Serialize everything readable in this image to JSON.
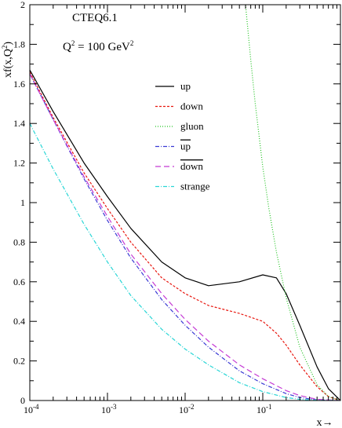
{
  "chart_data": {
    "type": "line",
    "x_scale": "log",
    "xlim": [
      0.0001,
      1
    ],
    "ylim": [
      0,
      2
    ],
    "grid": false,
    "legend_position": "top-center",
    "title_line1": "CTEQ6.1",
    "title_line2_prefix": "Q",
    "title_line2_sup": "2",
    "title_line2_rest": " = 100 GeV",
    "title_line2_sup2": "2",
    "ylabel_prefix": "xf(x,Q",
    "ylabel_sup": "2",
    "ylabel_suffix": ")",
    "xlabel": "x→",
    "y_ticks": [
      "0",
      "0.2",
      "0.4",
      "0.6",
      "0.8",
      "1",
      "1.2",
      "1.4",
      "1.6",
      "1.8",
      "2"
    ],
    "x_ticks": [
      {
        "base": "10",
        "exp": "-4"
      },
      {
        "base": "10",
        "exp": "-3"
      },
      {
        "base": "10",
        "exp": "-2"
      },
      {
        "base": "10",
        "exp": "-1"
      }
    ],
    "series": [
      {
        "name": "up",
        "overline": false,
        "color": "#000000",
        "dash": "",
        "x": [
          0.0001,
          0.0002,
          0.0005,
          0.001,
          0.002,
          0.005,
          0.01,
          0.02,
          0.05,
          0.1,
          0.15,
          0.2,
          0.3,
          0.5,
          0.7,
          1
        ],
        "y": [
          1.67,
          1.46,
          1.2,
          1.03,
          0.87,
          0.7,
          0.62,
          0.58,
          0.6,
          0.635,
          0.62,
          0.54,
          0.38,
          0.17,
          0.06,
          0.0
        ]
      },
      {
        "name": "down",
        "overline": false,
        "color": "#e8170f",
        "dash": "3,2",
        "x": [
          0.0001,
          0.0002,
          0.0005,
          0.001,
          0.002,
          0.005,
          0.01,
          0.02,
          0.05,
          0.1,
          0.15,
          0.2,
          0.3,
          0.5,
          0.7,
          1
        ],
        "y": [
          1.66,
          1.43,
          1.15,
          0.97,
          0.8,
          0.62,
          0.54,
          0.48,
          0.44,
          0.4,
          0.34,
          0.28,
          0.18,
          0.07,
          0.02,
          0.0
        ]
      },
      {
        "name": "gluon",
        "overline": false,
        "color": "#22c322",
        "dash": "1,2",
        "x": [
          0.06,
          0.07,
          0.08,
          0.1,
          0.12,
          0.15,
          0.2,
          0.3,
          0.5,
          0.7,
          1
        ],
        "y": [
          2.0,
          1.72,
          1.5,
          1.18,
          0.97,
          0.75,
          0.52,
          0.27,
          0.08,
          0.02,
          0.0
        ]
      },
      {
        "name": "up",
        "overline": true,
        "color": "#3a3ad4",
        "dash": "5,2,1,2",
        "x": [
          0.0001,
          0.0002,
          0.0005,
          0.001,
          0.002,
          0.005,
          0.01,
          0.02,
          0.05,
          0.1,
          0.2,
          0.3,
          0.5,
          1
        ],
        "y": [
          1.65,
          1.42,
          1.12,
          0.91,
          0.72,
          0.51,
          0.38,
          0.27,
          0.15,
          0.085,
          0.035,
          0.015,
          0.003,
          0.0
        ]
      },
      {
        "name": "down",
        "overline": true,
        "color": "#c43ad4",
        "dash": "7,4",
        "x": [
          0.0001,
          0.0002,
          0.0005,
          0.001,
          0.002,
          0.005,
          0.01,
          0.02,
          0.05,
          0.1,
          0.2,
          0.3,
          0.5,
          1
        ],
        "y": [
          1.65,
          1.42,
          1.13,
          0.93,
          0.74,
          0.54,
          0.41,
          0.3,
          0.18,
          0.11,
          0.05,
          0.025,
          0.006,
          0.0
        ]
      },
      {
        "name": "strange",
        "overline": false,
        "color": "#29d6d6",
        "dash": "5,2,1,2",
        "x": [
          0.0001,
          0.0002,
          0.0005,
          0.001,
          0.002,
          0.005,
          0.01,
          0.02,
          0.05,
          0.1,
          0.2,
          0.3,
          0.5,
          1
        ],
        "y": [
          1.4,
          1.17,
          0.89,
          0.7,
          0.53,
          0.36,
          0.26,
          0.18,
          0.09,
          0.045,
          0.015,
          0.006,
          0.001,
          0.0
        ]
      }
    ]
  }
}
